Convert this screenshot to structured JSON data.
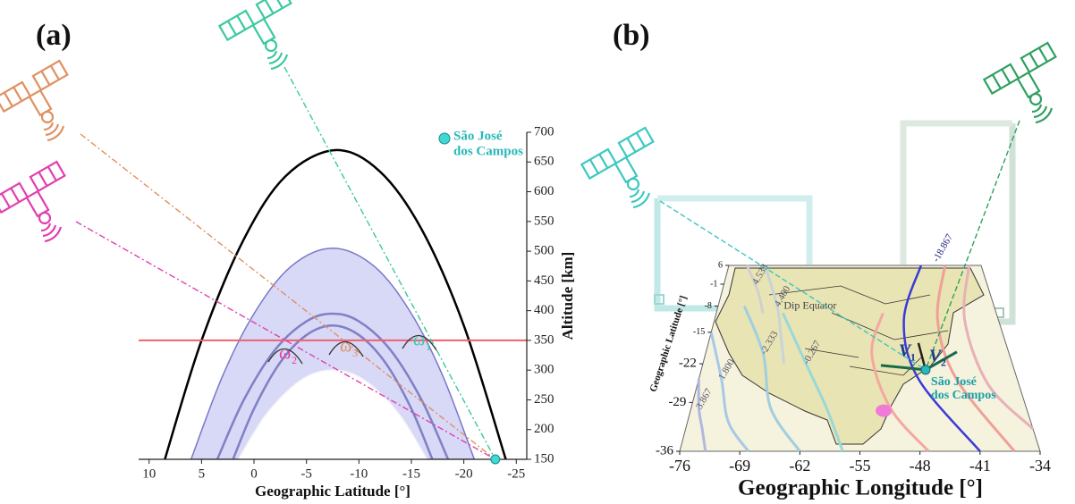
{
  "chart_data": [
    {
      "type": "line",
      "title": "(a)",
      "xlabel": "Geographic Latitude [°]",
      "ylabel": "Altitude [km]",
      "xlim": [
        11,
        -26
      ],
      "ylim": [
        150,
        700
      ],
      "xticks": [
        10,
        5,
        0,
        -5,
        -10,
        -15,
        -20,
        -25
      ],
      "yticks": [
        150,
        200,
        250,
        300,
        350,
        400,
        450,
        500,
        550,
        600,
        650,
        700
      ],
      "reference_line": {
        "y": 350,
        "color": "#f2606e"
      },
      "series": [
        {
          "color": "#7878c8",
          "fill": "#d8d8f7",
          "x": [
            6,
            3,
            0,
            -3.5,
            -7.5,
            -11.5,
            -15,
            -18,
            -21
          ],
          "values": [
            150,
            290,
            395,
            474,
            505,
            474,
            395,
            290,
            150
          ]
        },
        {
          "color": "#f4f4f8",
          "fill": "#ffffff",
          "x": [
            1.5,
            -1,
            -3.5,
            -5.5,
            -7.5,
            -9.5,
            -11.5,
            -14,
            -16.5
          ],
          "values": [
            150,
            222,
            270,
            293,
            300,
            293,
            270,
            222,
            150
          ]
        },
        {
          "color": "#8080c4",
          "x": [
            3.5,
            1,
            -2,
            -5,
            -7.5,
            -10,
            -13,
            -16,
            -18.5
          ],
          "values": [
            150,
            249,
            334,
            382,
            395,
            382,
            334,
            249,
            150
          ]
        },
        {
          "color": "#8080c4",
          "x": [
            2,
            0,
            -2.5,
            -5,
            -7.5,
            -10,
            -12.5,
            -15,
            -17
          ],
          "values": [
            150,
            235,
            313,
            359,
            375,
            359,
            313,
            235,
            150
          ]
        },
        {
          "color": "#000000",
          "x": [
            8.5,
            5,
            1,
            -3,
            -7.75,
            -12,
            -16,
            -20,
            -24
          ],
          "values": [
            150,
            350,
            519,
            626,
            670,
            634,
            536,
            375,
            150
          ]
        }
      ],
      "site": {
        "label": [
          "São José",
          "dos Campos"
        ],
        "x": -23,
        "y": 150,
        "color": "#3fd8d2"
      },
      "annotations": [
        {
          "symbol": "ω",
          "sub": "1",
          "color": "#3cc8a0"
        },
        {
          "symbol": "ω",
          "sub": "2",
          "color": "#e0409a"
        },
        {
          "symbol": "ω",
          "sub": "3",
          "color": "#e09060"
        }
      ]
    },
    {
      "type": "map",
      "title": "(b)",
      "xlabel": "Geographic Longitude [°]",
      "ylabel": "Geographic Latitude [°]",
      "xlim": [
        -76,
        -34
      ],
      "ylim": [
        -36,
        6
      ],
      "xticks": [
        -76,
        -69,
        -62,
        -55,
        -48,
        -41,
        -34
      ],
      "yticks": [
        6,
        -1,
        -8,
        -15,
        -22,
        -29,
        -36
      ],
      "contours": [
        {
          "label": "-18.867",
          "color": "#3a3ad8",
          "lon": [
            -44,
            -48,
            -47,
            -41
          ],
          "lat": [
            6,
            -12,
            -25,
            -36
          ]
        },
        {
          "label": "-2.333",
          "color": "#9fcfe0",
          "lon": [
            -72,
            -68,
            -66,
            -62
          ],
          "lat": [
            -8,
            -20,
            -30,
            -36
          ]
        },
        {
          "label": "1.800",
          "color": "#a8c8e8",
          "lon": [
            -76,
            -73,
            -71,
            -68
          ],
          "lat": [
            -15,
            -25,
            -32,
            -36
          ]
        },
        {
          "label": "3.867",
          "color": "#b0b8e0",
          "lon": [
            -76,
            -75,
            -74,
            -73
          ],
          "lat": [
            -25,
            -30,
            -33,
            -36
          ]
        },
        {
          "label": "-0.267",
          "color": "#9ad8d8",
          "lon": [
            -66,
            -62,
            -59,
            -57
          ],
          "lat": [
            -10,
            -22,
            -30,
            -36
          ]
        },
        {
          "label": "4.400",
          "color": "#c8d4d8",
          "lon": [
            -70,
            -67,
            -66,
            -65
          ],
          "lat": [
            6,
            -8,
            -15,
            -22
          ]
        },
        {
          "label": "4.533",
          "color": "#d0d0d0",
          "lon": [
            -73,
            -71,
            -70,
            -69
          ],
          "lat": [
            6,
            -1,
            -5,
            -10
          ]
        },
        {
          "label": "",
          "color": "#f4a8a0",
          "lon": [
            -51,
            -53,
            -51,
            -47
          ],
          "lat": [
            -10,
            -20,
            -30,
            -36
          ]
        },
        {
          "label": "",
          "color": "#f0a098",
          "lon": [
            -40,
            -43,
            -42,
            -37
          ],
          "lat": [
            6,
            -12,
            -25,
            -36
          ]
        },
        {
          "label": "",
          "color": "#e8b0b8",
          "lon": [
            -36,
            -39,
            -38,
            -34
          ],
          "lat": [
            6,
            -12,
            -26,
            -33
          ]
        }
      ],
      "text_labels": [
        {
          "text": "Dip Equator",
          "lon": -66,
          "lat": -8
        }
      ],
      "site": {
        "label": [
          "São José",
          "dos Campos"
        ],
        "lon": -45.9,
        "lat": -23.2,
        "color": "#2ab8c0"
      },
      "region": {
        "lon": -51.9,
        "lat": -30.3,
        "color": "#f07ad8"
      },
      "vectors": [
        {
          "symbol": "V",
          "sub": "1"
        },
        {
          "symbol": "V",
          "sub": "2"
        }
      ]
    }
  ]
}
